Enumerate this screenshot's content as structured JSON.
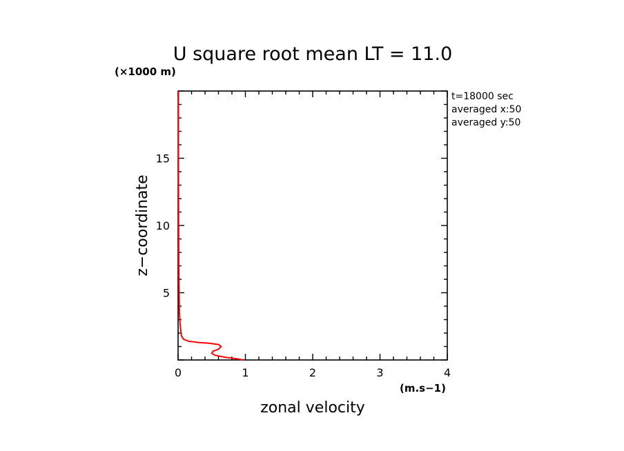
{
  "chart_data": {
    "type": "line",
    "title": "U square root mean LT = 11.0",
    "xlabel": "zonal velocity",
    "ylabel": "z−coordinate",
    "x_unit": "(m.s−1)",
    "y_unit": "(×1000 m)",
    "xlim": [
      0,
      4
    ],
    "ylim": [
      0,
      20
    ],
    "x_ticks": [
      "0",
      "1",
      "2",
      "3",
      "4"
    ],
    "y_ticks": [
      "5",
      "10",
      "15"
    ],
    "y_tick_values": [
      5,
      10,
      15
    ],
    "grid": false,
    "series_color": "#ff0000",
    "series": [
      {
        "x": [
          0.97,
          0.85,
          0.7,
          0.55,
          0.5,
          0.52,
          0.6,
          0.64,
          0.6,
          0.45,
          0.3,
          0.15,
          0.08,
          0.05,
          0.04,
          0.03,
          0.02,
          0.015,
          0.01,
          0.008,
          0.006,
          0.005,
          0.005
        ],
        "y": [
          0.0,
          0.1,
          0.2,
          0.35,
          0.5,
          0.65,
          0.8,
          1.0,
          1.15,
          1.25,
          1.3,
          1.4,
          1.55,
          1.8,
          2.2,
          2.7,
          3.5,
          5.0,
          7.0,
          10.0,
          13.0,
          16.0,
          20.0
        ]
      }
    ],
    "annotations": [
      "t=18000 sec",
      "averaged  x:50",
      "averaged  y:50"
    ]
  }
}
